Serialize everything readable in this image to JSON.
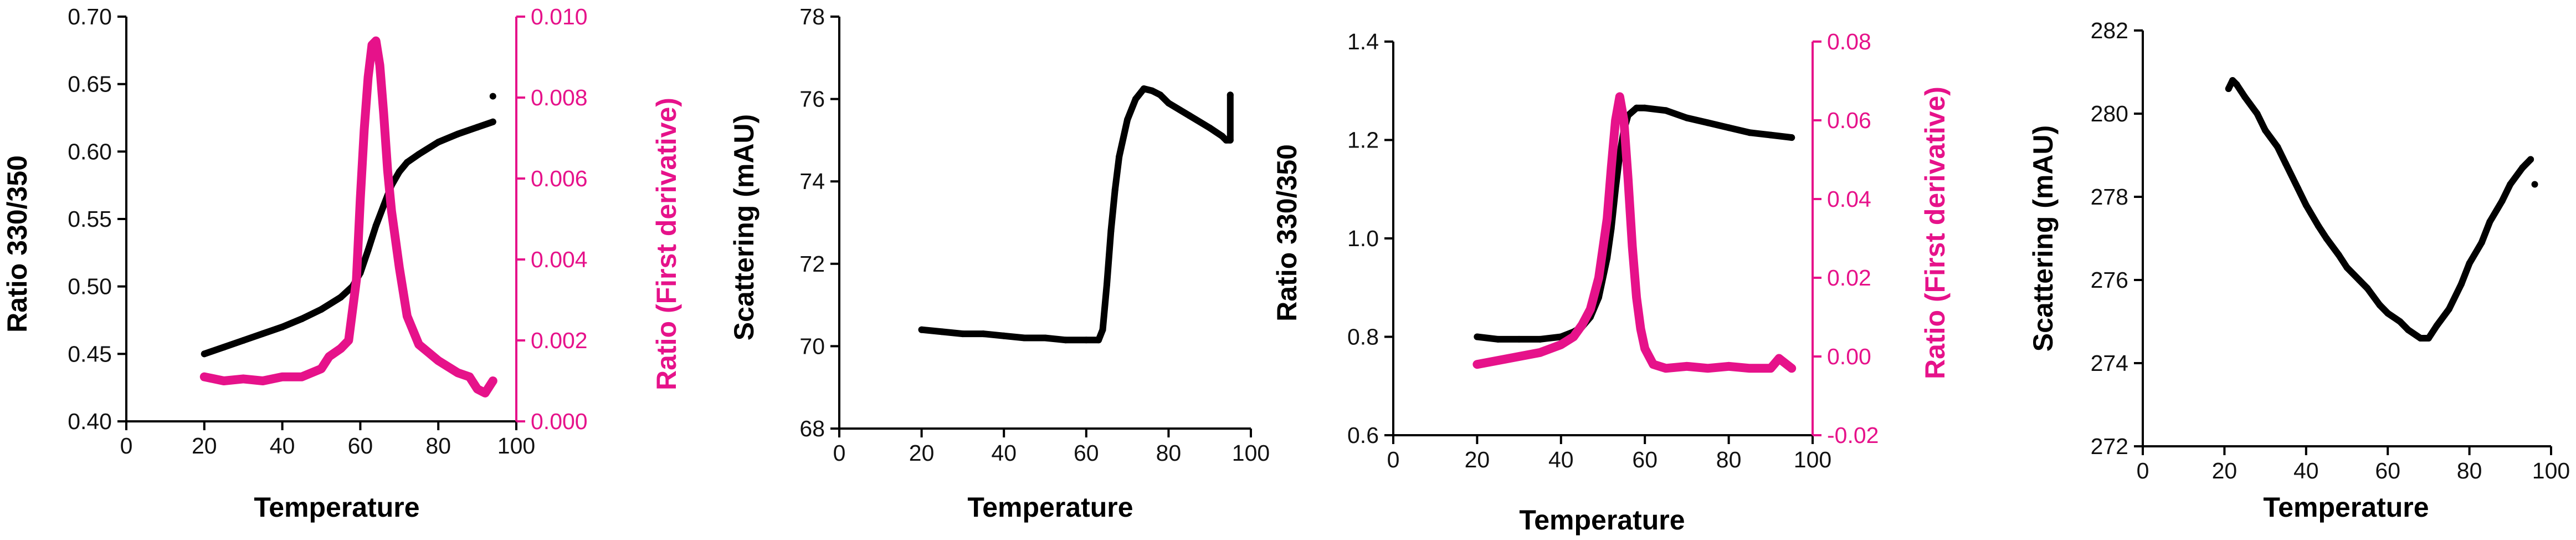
{
  "colors": {
    "black": "#000000",
    "magenta": "#E6128A"
  },
  "chart_data": [
    {
      "type": "line",
      "xlabel": "Temperature",
      "ylabel": "Ratio 330/350",
      "y2label": "Ratio (First derivative)",
      "xlim": [
        0,
        100
      ],
      "ylim": [
        0.4,
        0.7
      ],
      "y2lim": [
        0.0,
        0.01
      ],
      "xticks": [
        "0",
        "20",
        "40",
        "60",
        "80",
        "100"
      ],
      "yticks": [
        "0.40",
        "0.45",
        "0.50",
        "0.55",
        "0.60",
        "0.65",
        "0.70"
      ],
      "y2ticks": [
        "0.000",
        "0.002",
        "0.004",
        "0.006",
        "0.008",
        "0.010"
      ],
      "grid": false,
      "series": [
        {
          "axis": "left",
          "color": "#000000",
          "x": [
            20,
            25,
            30,
            35,
            40,
            45,
            50,
            55,
            58,
            60,
            62,
            64,
            66,
            68,
            70,
            72,
            75,
            80,
            85,
            90,
            94
          ],
          "y": [
            0.45,
            0.455,
            0.46,
            0.465,
            0.47,
            0.476,
            0.483,
            0.492,
            0.5,
            0.51,
            0.527,
            0.545,
            0.56,
            0.575,
            0.585,
            0.592,
            0.598,
            0.607,
            0.613,
            0.618,
            0.622
          ]
        },
        {
          "axis": "right",
          "color": "#E6128A",
          "x": [
            20,
            25,
            30,
            35,
            40,
            45,
            50,
            52,
            55,
            57,
            59,
            60,
            61,
            62,
            63,
            64,
            65,
            66,
            67,
            68,
            69,
            70,
            72,
            75,
            80,
            85,
            88,
            90,
            92,
            94
          ],
          "y": [
            0.0011,
            0.001,
            0.00105,
            0.001,
            0.0011,
            0.0011,
            0.0013,
            0.0016,
            0.0018,
            0.002,
            0.0035,
            0.0055,
            0.0072,
            0.0085,
            0.0093,
            0.0094,
            0.0088,
            0.0076,
            0.0062,
            0.0052,
            0.0045,
            0.0038,
            0.0026,
            0.0019,
            0.0015,
            0.0012,
            0.0011,
            0.0008,
            0.0007,
            0.001
          ]
        }
      ],
      "outliers": [
        {
          "x": 94,
          "y": 0.641
        }
      ]
    },
    {
      "type": "line",
      "xlabel": "Temperature",
      "ylabel": "Scattering (mAU)",
      "xlim": [
        0,
        100
      ],
      "ylim": [
        68,
        78
      ],
      "xticks": [
        "0",
        "20",
        "40",
        "60",
        "80",
        "100"
      ],
      "yticks": [
        "68",
        "70",
        "72",
        "74",
        "76",
        "78"
      ],
      "grid": false,
      "series": [
        {
          "axis": "left",
          "color": "#000000",
          "x": [
            20,
            25,
            30,
            35,
            40,
            45,
            50,
            55,
            60,
            63,
            64,
            65,
            66,
            67,
            68,
            70,
            72,
            74,
            76,
            78,
            80,
            85,
            90,
            93,
            94,
            95,
            95
          ],
          "y": [
            70.4,
            70.35,
            70.3,
            70.3,
            70.25,
            70.2,
            70.2,
            70.15,
            70.15,
            70.15,
            70.4,
            71.5,
            72.8,
            73.8,
            74.6,
            75.5,
            76.0,
            76.25,
            76.2,
            76.1,
            75.9,
            75.6,
            75.3,
            75.1,
            75.0,
            75.0,
            76.1
          ]
        }
      ],
      "outliers": []
    },
    {
      "type": "line",
      "xlabel": "Temperature",
      "ylabel": "Ratio 330/350",
      "y2label": "Ratio (First derivative)",
      "xlim": [
        0,
        100
      ],
      "ylim": [
        0.6,
        1.4
      ],
      "y2lim": [
        -0.02,
        0.08
      ],
      "xticks": [
        "0",
        "20",
        "40",
        "60",
        "80",
        "100"
      ],
      "yticks": [
        "0.6",
        "0.8",
        "1.0",
        "1.2",
        "1.4"
      ],
      "y2ticks": [
        "-0.02",
        "0.00",
        "0.02",
        "0.04",
        "0.06",
        "0.08"
      ],
      "grid": false,
      "series": [
        {
          "axis": "left",
          "color": "#000000",
          "x": [
            20,
            25,
            30,
            35,
            40,
            43,
            45,
            47,
            49,
            51,
            52,
            53,
            54,
            55,
            56,
            58,
            60,
            65,
            70,
            75,
            80,
            85,
            90,
            95
          ],
          "y": [
            0.8,
            0.795,
            0.795,
            0.795,
            0.8,
            0.81,
            0.82,
            0.84,
            0.88,
            0.96,
            1.02,
            1.1,
            1.17,
            1.22,
            1.25,
            1.265,
            1.265,
            1.26,
            1.245,
            1.235,
            1.225,
            1.215,
            1.21,
            1.205
          ]
        },
        {
          "axis": "right",
          "color": "#E6128A",
          "x": [
            20,
            25,
            30,
            35,
            40,
            43,
            45,
            47,
            49,
            51,
            52,
            53,
            54,
            55,
            56,
            57,
            58,
            59,
            60,
            62,
            65,
            70,
            75,
            80,
            85,
            90,
            92,
            95
          ],
          "y": [
            -0.002,
            -0.001,
            0.0,
            0.001,
            0.003,
            0.005,
            0.008,
            0.012,
            0.02,
            0.035,
            0.048,
            0.06,
            0.066,
            0.06,
            0.045,
            0.028,
            0.015,
            0.007,
            0.002,
            -0.002,
            -0.003,
            -0.0025,
            -0.003,
            -0.0025,
            -0.003,
            -0.003,
            -0.0005,
            -0.003
          ]
        }
      ],
      "outliers": []
    },
    {
      "type": "line",
      "xlabel": "Temperature",
      "ylabel": "Scattering (mAU)",
      "xlim": [
        0,
        100
      ],
      "ylim": [
        272,
        282
      ],
      "xticks": [
        "0",
        "20",
        "40",
        "60",
        "80",
        "100"
      ],
      "yticks": [
        "272",
        "274",
        "276",
        "278",
        "280",
        "282"
      ],
      "grid": false,
      "series": [
        {
          "axis": "left",
          "color": "#000000",
          "x": [
            21,
            22,
            23,
            25,
            28,
            30,
            33,
            35,
            38,
            40,
            43,
            45,
            48,
            50,
            53,
            55,
            58,
            60,
            63,
            65,
            68,
            70,
            72,
            75,
            78,
            80,
            83,
            85,
            88,
            90,
            93,
            95
          ],
          "y": [
            280.6,
            280.8,
            280.7,
            280.4,
            280.0,
            279.6,
            279.2,
            278.8,
            278.2,
            277.8,
            277.3,
            277.0,
            276.6,
            276.3,
            276.0,
            275.8,
            275.4,
            275.2,
            275.0,
            274.8,
            274.6,
            274.6,
            274.9,
            275.3,
            275.9,
            276.4,
            276.9,
            277.4,
            277.9,
            278.3,
            278.7,
            278.9
          ]
        }
      ],
      "outliers": [
        {
          "x": 96,
          "y": 278.3
        }
      ]
    }
  ]
}
